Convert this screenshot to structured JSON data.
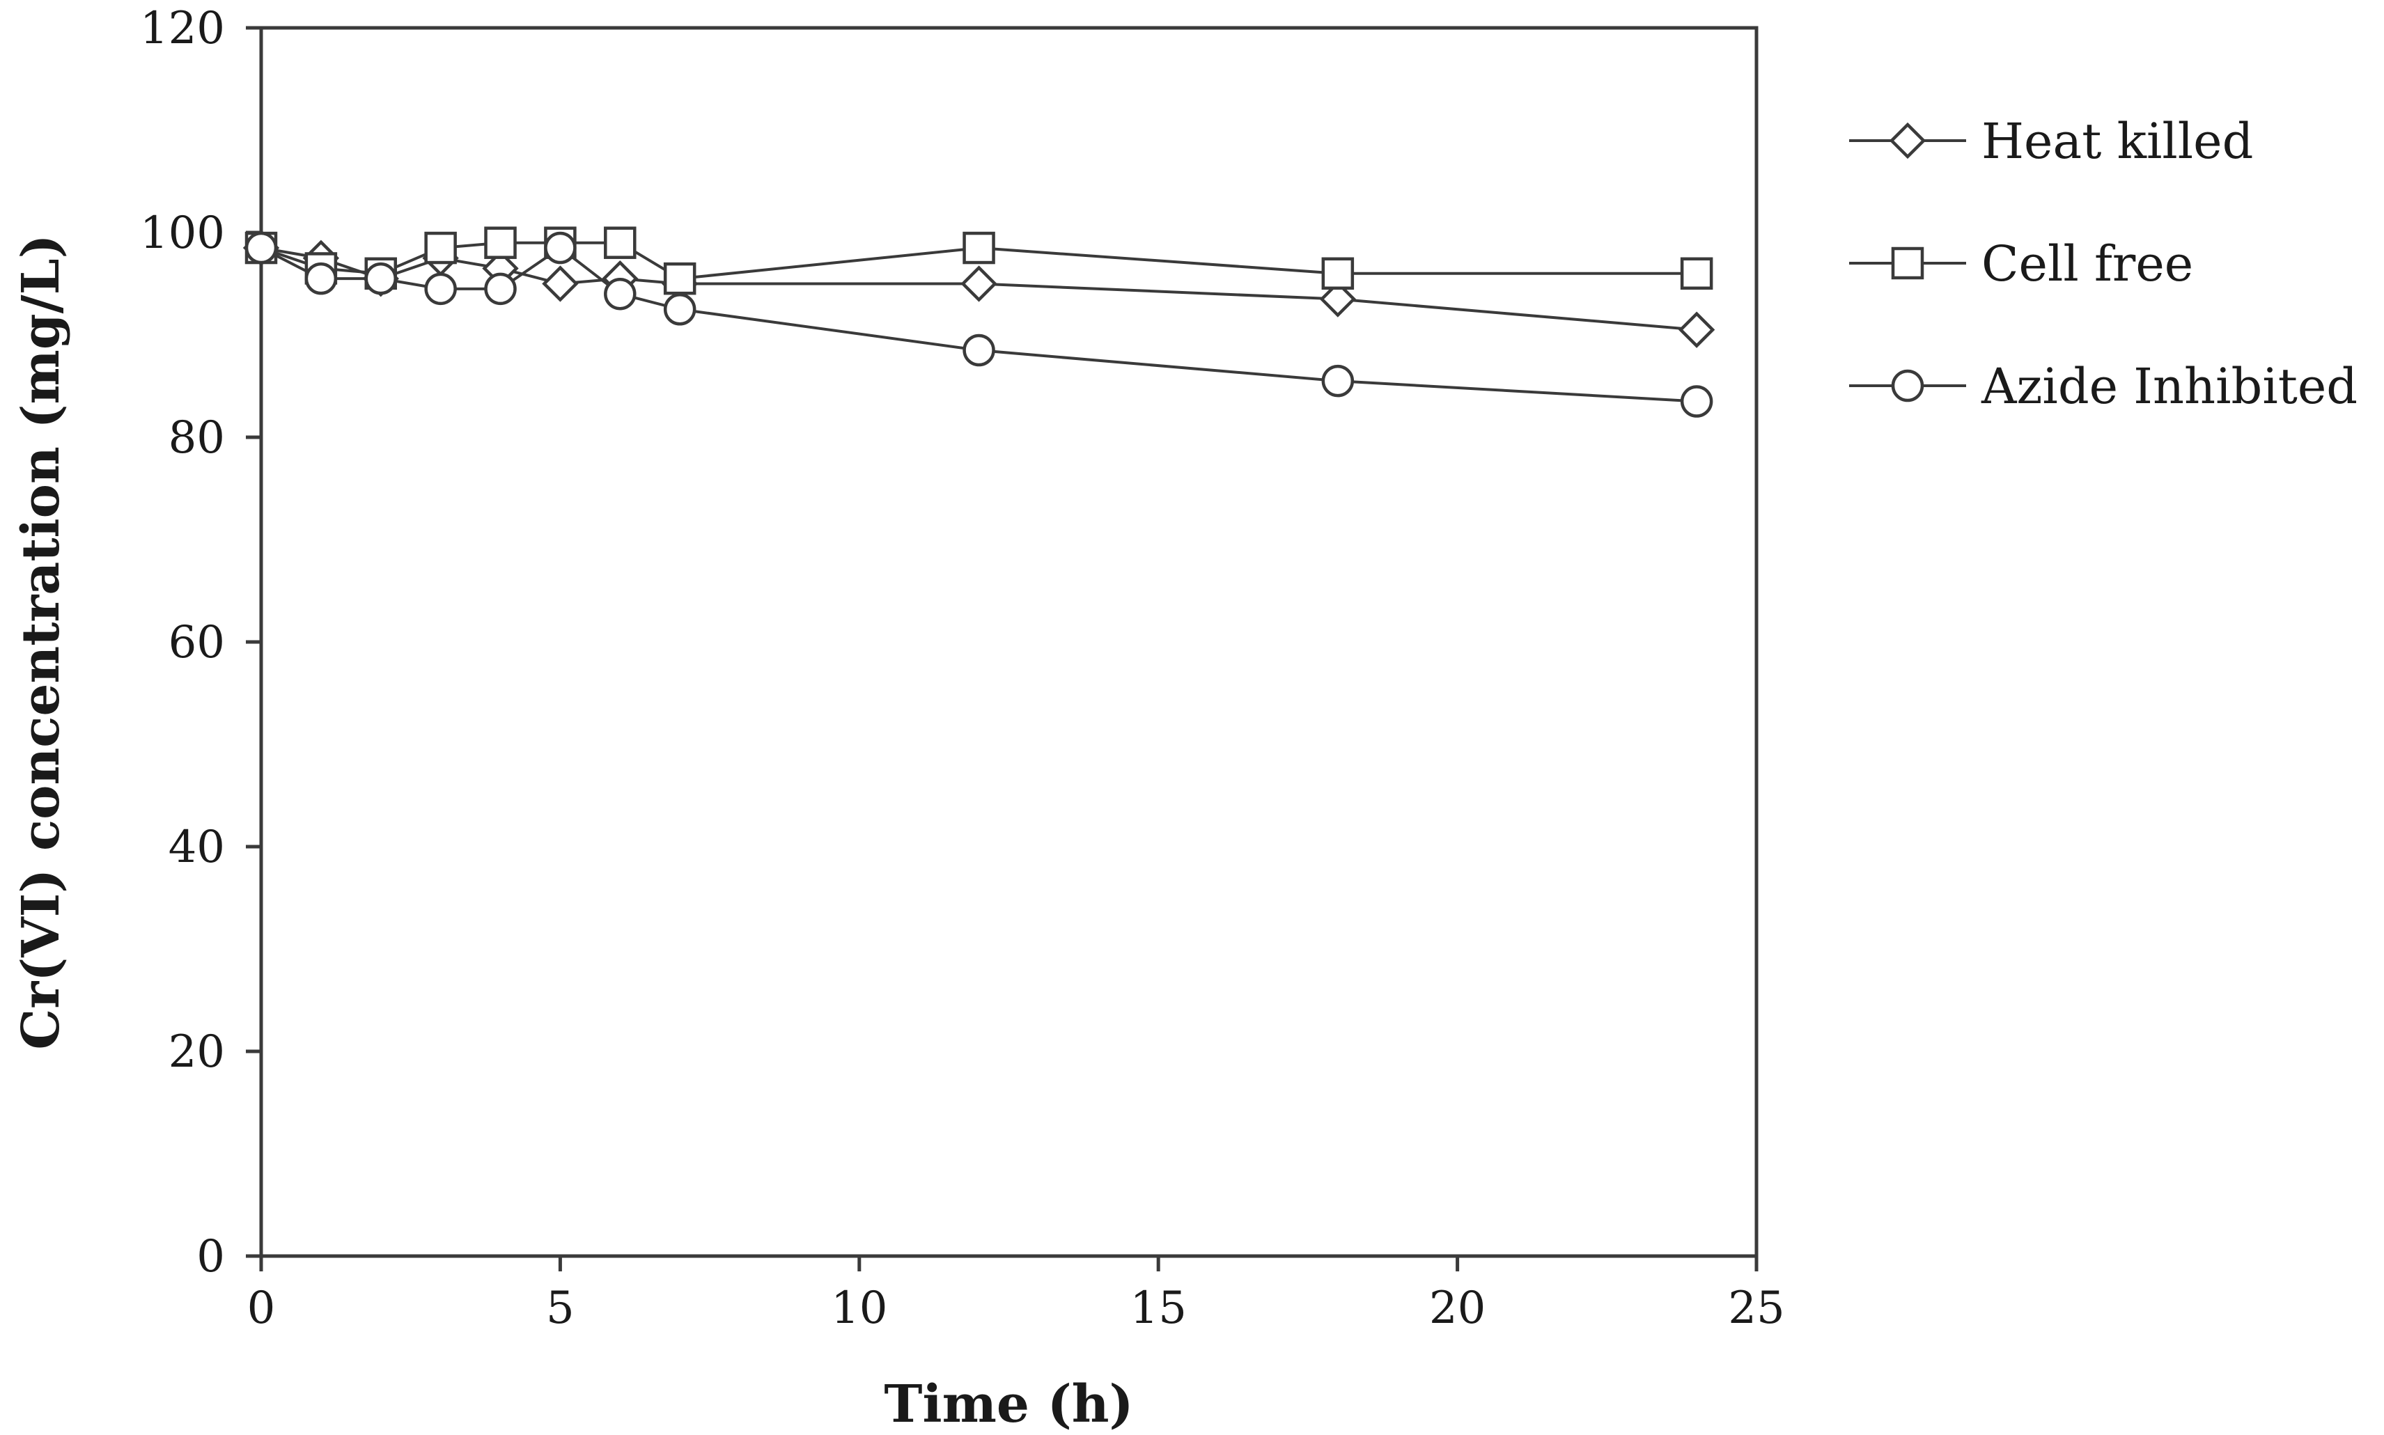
{
  "chart_data": {
    "type": "line",
    "title": "",
    "xlabel": "Time (h)",
    "ylabel": "Cr(VI) concentration (mg/L)",
    "xlim": [
      0,
      25
    ],
    "ylim": [
      0,
      120
    ],
    "xticks": [
      0,
      5,
      10,
      15,
      20,
      25
    ],
    "yticks": [
      0,
      20,
      40,
      60,
      80,
      100,
      120
    ],
    "grid": false,
    "legend_position": "right",
    "line_color": "#3a3a3a",
    "series": [
      {
        "name": "Heat killed",
        "marker": "diamond",
        "x": [
          0,
          1,
          2,
          3,
          4,
          5,
          6,
          7,
          12,
          18,
          24
        ],
        "y": [
          98.5,
          97.5,
          95.5,
          97.5,
          96.5,
          95,
          95.5,
          95,
          95,
          93.5,
          90.5
        ]
      },
      {
        "name": "Cell free",
        "marker": "square",
        "x": [
          0,
          1,
          2,
          3,
          4,
          5,
          6,
          7,
          12,
          18,
          24
        ],
        "y": [
          98.5,
          96.5,
          96,
          98.5,
          99,
          99,
          99,
          95.5,
          98.5,
          96,
          96
        ]
      },
      {
        "name": "Azide Inhibited",
        "marker": "circle",
        "x": [
          0,
          1,
          2,
          3,
          4,
          5,
          6,
          7,
          12,
          18,
          24
        ],
        "y": [
          98.5,
          95.5,
          95.5,
          94.5,
          94.5,
          98.5,
          94,
          92.5,
          88.5,
          85.5,
          83.5
        ]
      }
    ]
  }
}
